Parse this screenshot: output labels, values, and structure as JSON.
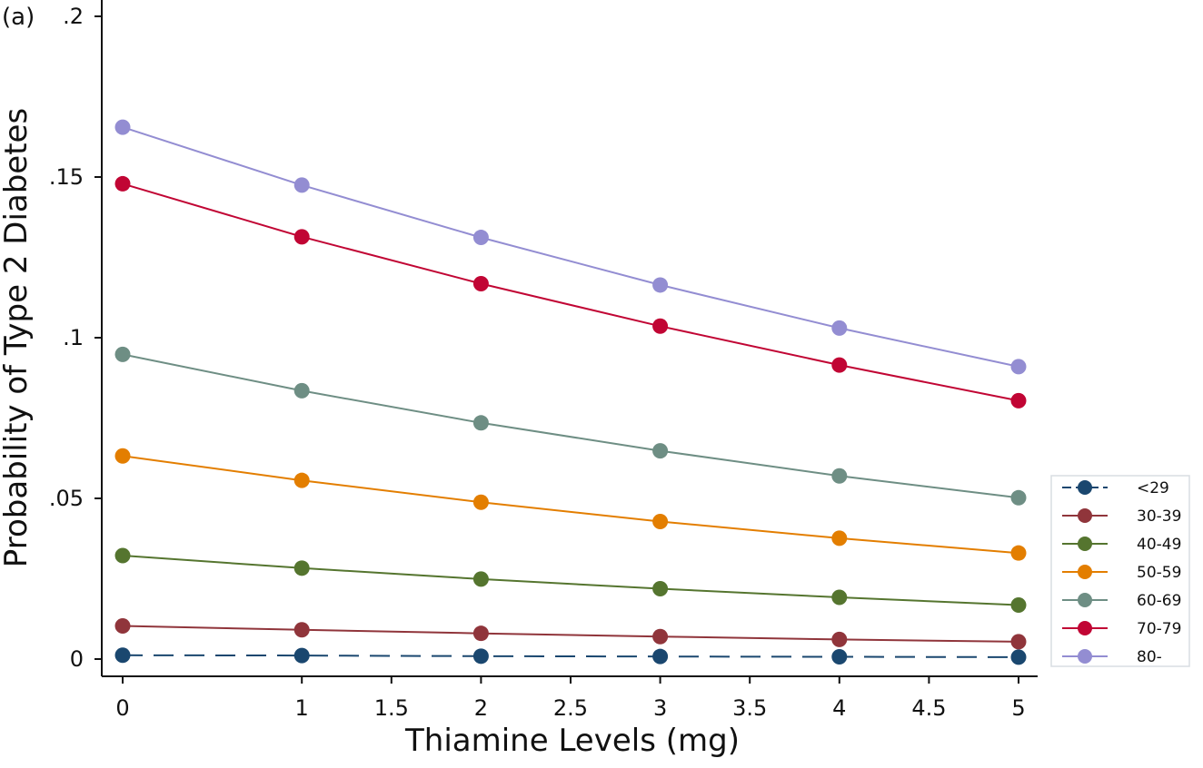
{
  "panel_label": "(a)",
  "chart_data": {
    "type": "line",
    "title": "",
    "xlabel": "Thiamine Levels (mg)",
    "ylabel": "Probability of Type 2 Diabetes",
    "xlim": [
      0,
      5
    ],
    "ylim": [
      0,
      0.2
    ],
    "x": [
      0,
      1,
      2,
      3,
      4,
      5
    ],
    "x_ticks": [
      {
        "value": 0,
        "label": "0"
      },
      {
        "value": 1,
        "label": "1"
      },
      {
        "value": 1.5,
        "label": "1.5"
      },
      {
        "value": 2,
        "label": "2"
      },
      {
        "value": 2.5,
        "label": "2.5"
      },
      {
        "value": 3,
        "label": "3"
      },
      {
        "value": 3.5,
        "label": "3.5"
      },
      {
        "value": 4,
        "label": "4"
      },
      {
        "value": 4.5,
        "label": "4.5"
      },
      {
        "value": 5,
        "label": "5"
      }
    ],
    "y_ticks": [
      {
        "value": 0,
        "label": "0"
      },
      {
        "value": 0.05,
        "label": ".05"
      },
      {
        "value": 0.1,
        "label": ".1"
      },
      {
        "value": 0.15,
        "label": ".15"
      },
      {
        "value": 0.2,
        "label": ".2"
      }
    ],
    "grid": false,
    "legend_position": "right",
    "series": [
      {
        "name": "<29",
        "color": "#1a476f",
        "dashed": true,
        "values": [
          0.0012,
          0.0011,
          0.0009,
          0.0008,
          0.0007,
          0.0006
        ]
      },
      {
        "name": "30-39",
        "color": "#90353b",
        "dashed": false,
        "values": [
          0.0103,
          0.0091,
          0.008,
          0.007,
          0.0061,
          0.0054
        ]
      },
      {
        "name": "40-49",
        "color": "#55752f",
        "dashed": false,
        "values": [
          0.0322,
          0.0283,
          0.0249,
          0.0219,
          0.0192,
          0.0168
        ]
      },
      {
        "name": "50-59",
        "color": "#e37e00",
        "dashed": false,
        "values": [
          0.0632,
          0.0556,
          0.0488,
          0.0428,
          0.0376,
          0.033
        ]
      },
      {
        "name": "60-69",
        "color": "#6e8e84",
        "dashed": false,
        "values": [
          0.0948,
          0.0835,
          0.0735,
          0.0648,
          0.057,
          0.0502
        ]
      },
      {
        "name": "70-79",
        "color": "#c10534",
        "dashed": false,
        "values": [
          0.1479,
          0.1314,
          0.1168,
          0.1036,
          0.0915,
          0.0804
        ]
      },
      {
        "name": "80-",
        "color": "#938dd2",
        "dashed": false,
        "values": [
          0.1655,
          0.1475,
          0.1312,
          0.1164,
          0.103,
          0.091
        ]
      }
    ]
  }
}
